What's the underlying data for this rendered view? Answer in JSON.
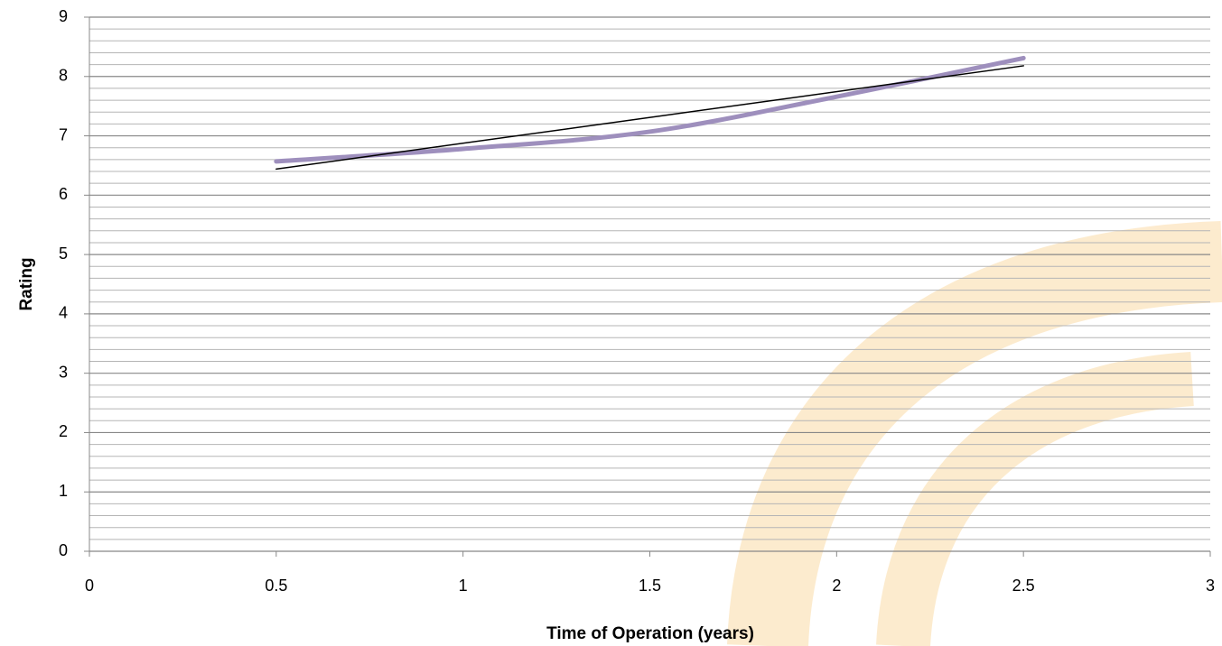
{
  "chart_data": {
    "type": "line",
    "x_label": "Time of Operation (years)",
    "y_label": "Rating",
    "series": [
      {
        "color": "#9e8fbd",
        "x": [
          0.5,
          1,
          1.5,
          2,
          2.5
        ],
        "values": [
          6.57,
          6.78,
          7.07,
          7.66,
          8.31
        ],
        "smooth": true,
        "width": 5
      },
      {
        "color": "#000000",
        "x": [
          0.5,
          2.5
        ],
        "values": [
          6.44,
          8.18
        ],
        "smooth": false,
        "width": 1.5
      }
    ],
    "xlim": [
      0,
      3
    ],
    "xticks": [
      0,
      0.5,
      1,
      1.5,
      2,
      2.5,
      3
    ],
    "ylim": [
      0,
      9
    ],
    "yticks": [
      0,
      1,
      2,
      3,
      4,
      5,
      6,
      7,
      8,
      9
    ],
    "grid": true,
    "minor_gridlines_per_tick": 5
  }
}
